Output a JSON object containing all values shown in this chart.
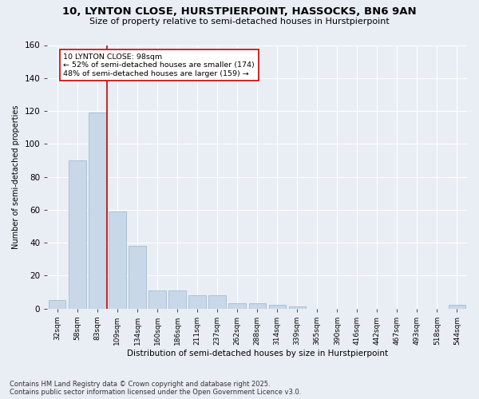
{
  "title_line1": "10, LYNTON CLOSE, HURSTPIERPOINT, HASSOCKS, BN6 9AN",
  "title_line2": "Size of property relative to semi-detached houses in Hurstpierpoint",
  "xlabel": "Distribution of semi-detached houses by size in Hurstpierpoint",
  "ylabel": "Number of semi-detached properties",
  "categories": [
    "32sqm",
    "58sqm",
    "83sqm",
    "109sqm",
    "134sqm",
    "160sqm",
    "186sqm",
    "211sqm",
    "237sqm",
    "262sqm",
    "288sqm",
    "314sqm",
    "339sqm",
    "365sqm",
    "390sqm",
    "416sqm",
    "442sqm",
    "467sqm",
    "493sqm",
    "518sqm",
    "544sqm"
  ],
  "values": [
    5,
    90,
    119,
    59,
    38,
    11,
    11,
    8,
    8,
    3,
    3,
    2,
    1,
    0,
    0,
    0,
    0,
    0,
    0,
    0,
    2
  ],
  "bar_color": "#c8d8e8",
  "bar_edge_color": "#9ab5cc",
  "vline_x": 2.5,
  "vline_color": "#cc0000",
  "annotation_title": "10 LYNTON CLOSE: 98sqm",
  "annotation_line1": "← 52% of semi-detached houses are smaller (174)",
  "annotation_line2": "48% of semi-detached houses are larger (159) →",
  "annotation_box_color": "#ffffff",
  "annotation_box_edge": "#cc0000",
  "ylim": [
    0,
    160
  ],
  "yticks": [
    0,
    20,
    40,
    60,
    80,
    100,
    120,
    140,
    160
  ],
  "footer_line1": "Contains HM Land Registry data © Crown copyright and database right 2025.",
  "footer_line2": "Contains public sector information licensed under the Open Government Licence v3.0.",
  "bg_color": "#e8eef4",
  "plot_bg_color": "#e8eef4",
  "grid_color": "#ffffff",
  "title_fontsize": 9.5,
  "subtitle_fontsize": 8,
  "axis_fontsize": 7,
  "ylabel_fontsize": 7.5
}
